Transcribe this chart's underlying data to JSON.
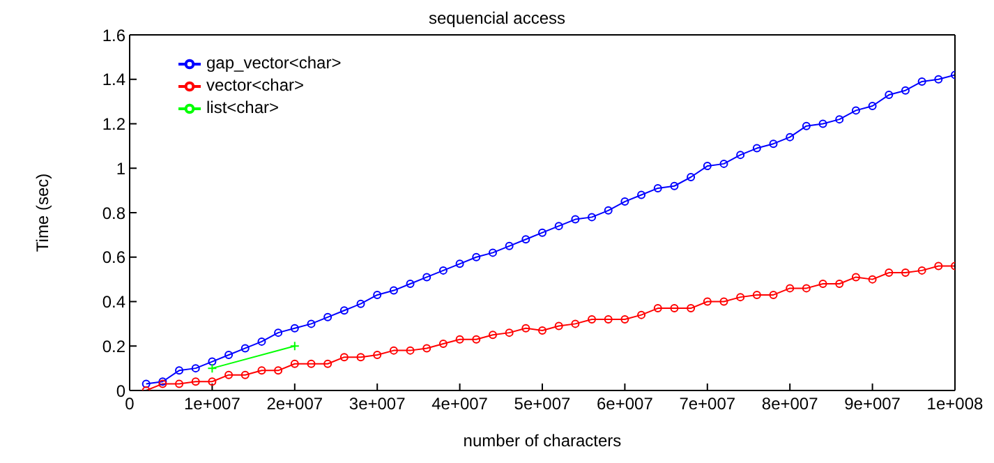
{
  "chart_data": {
    "type": "line",
    "title": "sequencial access",
    "xlabel": "number of characters",
    "ylabel": "Time (sec)",
    "xlim": [
      0,
      100000000
    ],
    "xticks": [
      0,
      {
        "value": 10000000,
        "label": "1e+007"
      },
      {
        "value": 20000000,
        "label": "2e+007"
      },
      {
        "value": 30000000,
        "label": "3e+007"
      },
      {
        "value": 40000000,
        "label": "4e+007"
      },
      {
        "value": 50000000,
        "label": "5e+007"
      },
      {
        "value": 60000000,
        "label": "6e+007"
      },
      {
        "value": 70000000,
        "label": "7e+007"
      },
      {
        "value": 80000000,
        "label": "8e+007"
      },
      {
        "value": 90000000,
        "label": "9e+007"
      },
      {
        "value": 100000000,
        "label": "1e+008"
      }
    ],
    "ylim": [
      0,
      1.6
    ],
    "yticks": [
      0,
      0.2,
      0.4,
      0.6,
      0.8,
      1,
      1.2,
      1.4,
      1.6
    ],
    "x": [
      2000000,
      4000000,
      6000000,
      8000000,
      10000000,
      12000000,
      14000000,
      16000000,
      18000000,
      20000000,
      22000000,
      24000000,
      26000000,
      28000000,
      30000000,
      32000000,
      34000000,
      36000000,
      38000000,
      40000000,
      42000000,
      44000000,
      46000000,
      48000000,
      50000000,
      52000000,
      54000000,
      56000000,
      58000000,
      60000000,
      62000000,
      64000000,
      66000000,
      68000000,
      70000000,
      72000000,
      74000000,
      76000000,
      78000000,
      80000000,
      82000000,
      84000000,
      86000000,
      88000000,
      90000000,
      92000000,
      94000000,
      96000000,
      98000000,
      100000000
    ],
    "series": [
      {
        "name": "gap_vector<char>",
        "color": "#0000ff",
        "marker": "circle",
        "values": [
          0.03,
          0.04,
          0.09,
          0.1,
          0.13,
          0.16,
          0.19,
          0.22,
          0.26,
          0.28,
          0.3,
          0.33,
          0.36,
          0.39,
          0.43,
          0.45,
          0.48,
          0.51,
          0.54,
          0.57,
          0.6,
          0.62,
          0.65,
          0.68,
          0.71,
          0.74,
          0.77,
          0.78,
          0.81,
          0.85,
          0.88,
          0.91,
          0.92,
          0.96,
          1.01,
          1.02,
          1.06,
          1.09,
          1.11,
          1.14,
          1.19,
          1.2,
          1.22,
          1.26,
          1.28,
          1.33,
          1.35,
          1.39,
          1.4,
          1.42
        ]
      },
      {
        "name": "vector<char>",
        "color": "#ff0000",
        "marker": "circle",
        "values": [
          0.0,
          0.03,
          0.03,
          0.04,
          0.04,
          0.07,
          0.07,
          0.09,
          0.09,
          0.12,
          0.12,
          0.12,
          0.15,
          0.15,
          0.16,
          0.18,
          0.18,
          0.19,
          0.21,
          0.23,
          0.23,
          0.25,
          0.26,
          0.28,
          0.27,
          0.29,
          0.3,
          0.32,
          0.32,
          0.32,
          0.34,
          0.37,
          0.37,
          0.37,
          0.4,
          0.4,
          0.42,
          0.43,
          0.43,
          0.46,
          0.46,
          0.48,
          0.48,
          0.51,
          0.5,
          0.53,
          0.53,
          0.54,
          0.56,
          0.56
        ]
      },
      {
        "name": "list<char>",
        "color": "#00ff00",
        "marker": "cross",
        "x": [
          10000000,
          20000000
        ],
        "values": [
          0.1,
          0.2
        ]
      }
    ],
    "legend": "top left",
    "grid": false,
    "line_style": "solid"
  }
}
